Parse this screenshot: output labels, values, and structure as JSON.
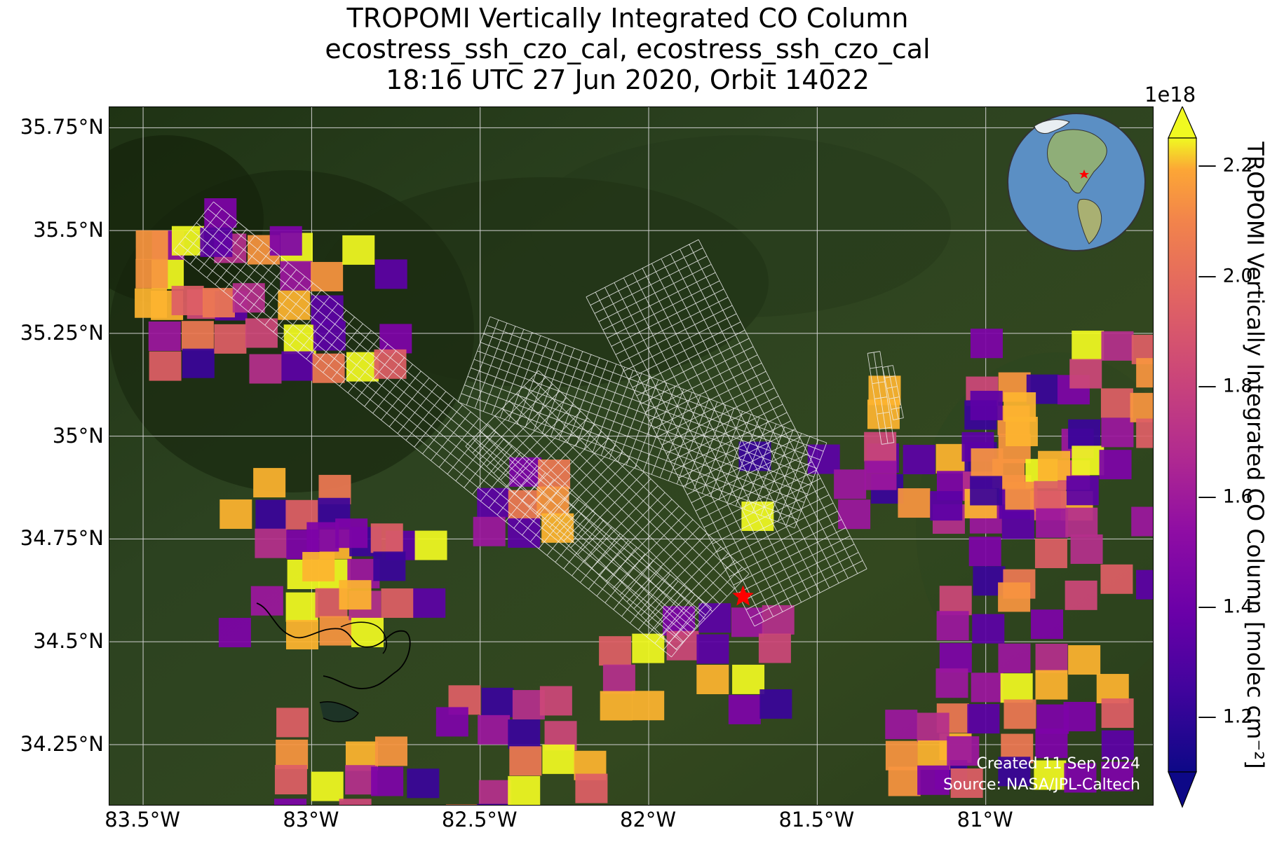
{
  "title": {
    "line1": "TROPOMI Vertically Integrated CO Column",
    "line2": "ecostress_ssh_czo_cal, ecostress_ssh_czo_cal",
    "line3": "18:16 UTC 27 Jun 2020, Orbit 14022"
  },
  "map": {
    "lon_range": [
      -83.6,
      -80.5
    ],
    "lat_range": [
      34.1,
      35.8
    ],
    "x_ticks": [
      "83.5°W",
      "83°W",
      "82.5°W",
      "82°W",
      "81.5°W",
      "81°W"
    ],
    "y_ticks": [
      "35.75°N",
      "35.5°N",
      "35.25°N",
      "35°N",
      "34.75°N",
      "34.5°N",
      "34.25°N"
    ],
    "site_marker": {
      "icon": "red-star-icon",
      "lon": -81.72,
      "lat": 34.61,
      "color": "#ff0000"
    },
    "credit_line1": "Created 11 Sep 2024",
    "credit_line2": "Source: NASA/JPL-Caltech",
    "inset": "globe-locator-icon"
  },
  "colorbar": {
    "label": "TROPOMI Vertically Integrated CO Column [molec cm⁻²]",
    "exponent": "1e18",
    "colormap": "plasma",
    "range": [
      1.1,
      2.25
    ],
    "ticks": [
      "2.2",
      "2.0",
      "1.8",
      "1.6",
      "1.4",
      "1.2"
    ]
  }
}
